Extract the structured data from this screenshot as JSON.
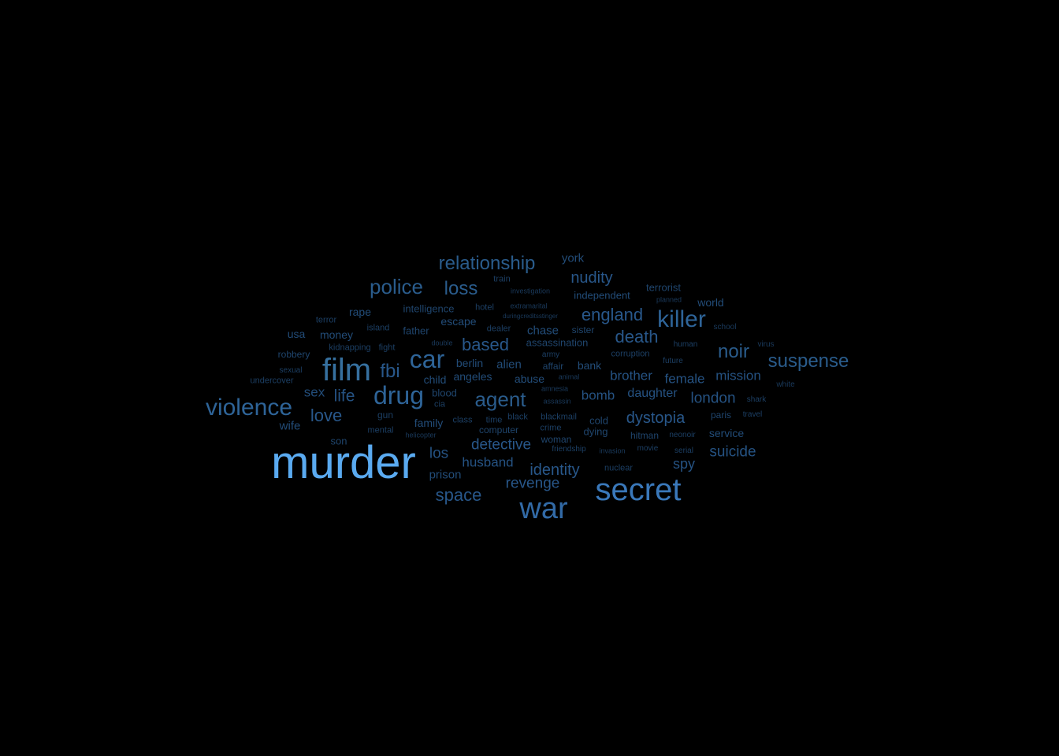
{
  "words": [
    {
      "text": "murder",
      "color": "#5aaaf0"
    },
    {
      "text": "secret",
      "color": "#3a78ba"
    },
    {
      "text": "war",
      "color": "#326aa6"
    },
    {
      "text": "film",
      "color": "#36709f"
    },
    {
      "text": "drug",
      "color": "#2e6498"
    },
    {
      "text": "car",
      "color": "#2e6498"
    },
    {
      "text": "violence",
      "color": "#2e6498"
    },
    {
      "text": "killer",
      "color": "#2e6498"
    },
    {
      "text": "police",
      "color": "#2a5c8c"
    },
    {
      "text": "agent",
      "color": "#2a5c8c"
    },
    {
      "text": "relationship",
      "color": "#2a5c8c"
    },
    {
      "text": "suspense",
      "color": "#2a5c8c"
    },
    {
      "text": "loss",
      "color": "#2a5c8c"
    },
    {
      "text": "noir",
      "color": "#2a5c8c"
    },
    {
      "text": "fbi",
      "color": "#28578a"
    },
    {
      "text": "england",
      "color": "#28578a"
    },
    {
      "text": "death",
      "color": "#28578a"
    },
    {
      "text": "based",
      "color": "#28578a"
    },
    {
      "text": "space",
      "color": "#28578a"
    },
    {
      "text": "love",
      "color": "#28578a"
    },
    {
      "text": "nudity",
      "color": "#28578a"
    },
    {
      "text": "identity",
      "color": "#28578a"
    },
    {
      "text": "dystopia",
      "color": "#28578a"
    },
    {
      "text": "revenge",
      "color": "#28578a"
    },
    {
      "text": "detective",
      "color": "#28578a"
    },
    {
      "text": "life",
      "color": "#255282"
    },
    {
      "text": "london",
      "color": "#255282"
    },
    {
      "text": "mission",
      "color": "#255282"
    },
    {
      "text": "suicide",
      "color": "#255282"
    },
    {
      "text": "husband",
      "color": "#255282"
    },
    {
      "text": "los",
      "color": "#255282"
    },
    {
      "text": "brother",
      "color": "#255282"
    },
    {
      "text": "female",
      "color": "#255282"
    },
    {
      "text": "bomb",
      "color": "#255282"
    },
    {
      "text": "daughter",
      "color": "#255282"
    },
    {
      "text": "spy",
      "color": "#255282"
    },
    {
      "text": "prison",
      "color": "#224c78"
    },
    {
      "text": "sex",
      "color": "#224c78"
    },
    {
      "text": "york",
      "color": "#224c78"
    },
    {
      "text": "alien",
      "color": "#224c78"
    },
    {
      "text": "chase",
      "color": "#224c78"
    },
    {
      "text": "angeles",
      "color": "#224c78"
    },
    {
      "text": "escape",
      "color": "#224c78"
    },
    {
      "text": "abuse",
      "color": "#224c78"
    },
    {
      "text": "berlin",
      "color": "#224c78"
    },
    {
      "text": "bank",
      "color": "#224c78"
    },
    {
      "text": "service",
      "color": "#224c78"
    },
    {
      "text": "world",
      "color": "#224c78"
    },
    {
      "text": "independent",
      "color": "#224c78"
    },
    {
      "text": "money",
      "color": "#224c78"
    },
    {
      "text": "rape",
      "color": "#224c78"
    },
    {
      "text": "usa",
      "color": "#224c78"
    },
    {
      "text": "wife",
      "color": "#224c78"
    },
    {
      "text": "family",
      "color": "#224c78"
    },
    {
      "text": "child",
      "color": "#224c78"
    },
    {
      "text": "father",
      "color": "#1f456d"
    },
    {
      "text": "intelligence",
      "color": "#1f456d"
    },
    {
      "text": "assassination",
      "color": "#1f456d"
    },
    {
      "text": "computer",
      "color": "#1f456d"
    },
    {
      "text": "blood",
      "color": "#1f456d"
    },
    {
      "text": "cold",
      "color": "#1f456d"
    },
    {
      "text": "dying",
      "color": "#1f456d"
    },
    {
      "text": "terrorist",
      "color": "#1f456d"
    },
    {
      "text": "son",
      "color": "#1f456d"
    },
    {
      "text": "robbery",
      "color": "#1f456d"
    },
    {
      "text": "hitman",
      "color": "#1f456d"
    },
    {
      "text": "paris",
      "color": "#1f456d"
    },
    {
      "text": "affair",
      "color": "#1f456d"
    },
    {
      "text": "sister",
      "color": "#1f456d"
    },
    {
      "text": "woman",
      "color": "#1f456d"
    },
    {
      "text": "nuclear",
      "color": "#1c3f64"
    },
    {
      "text": "crime",
      "color": "#1c3f64"
    },
    {
      "text": "class",
      "color": "#1c3f64"
    },
    {
      "text": "time",
      "color": "#1c3f64"
    },
    {
      "text": "black",
      "color": "#1c3f64"
    },
    {
      "text": "blackmail",
      "color": "#1c3f64"
    },
    {
      "text": "gun",
      "color": "#1c3f64"
    },
    {
      "text": "mental",
      "color": "#1c3f64"
    },
    {
      "text": "fight",
      "color": "#1c3f64"
    },
    {
      "text": "kidnapping",
      "color": "#1c3f64"
    },
    {
      "text": "train",
      "color": "#1c3f64"
    },
    {
      "text": "hotel",
      "color": "#1c3f64"
    },
    {
      "text": "dealer",
      "color": "#1c3f64"
    },
    {
      "text": "island",
      "color": "#1c3f64"
    },
    {
      "text": "terror",
      "color": "#1c3f64"
    },
    {
      "text": "undercover",
      "color": "#1c3f64"
    },
    {
      "text": "sexual",
      "color": "#1c3f64"
    },
    {
      "text": "cia",
      "color": "#1c3f64"
    },
    {
      "text": "army",
      "color": "#1c3f64"
    },
    {
      "text": "corruption",
      "color": "#1c3f64"
    },
    {
      "text": "human",
      "color": "#1c3f64"
    },
    {
      "text": "future",
      "color": "#1c3f64"
    },
    {
      "text": "movie",
      "color": "#1c3f64"
    },
    {
      "text": "serial",
      "color": "#1c3f64"
    },
    {
      "text": "neonoir",
      "color": "#1c3f64"
    },
    {
      "text": "travel",
      "color": "#1c3f64"
    },
    {
      "text": "shark",
      "color": "#1c3f64"
    },
    {
      "text": "friendship",
      "color": "#1c3f64"
    },
    {
      "text": "school",
      "color": "#1a3a5c"
    },
    {
      "text": "virus",
      "color": "#1a3a5c"
    },
    {
      "text": "white",
      "color": "#1a3a5c"
    },
    {
      "text": "investigation",
      "color": "#1a3a5c"
    },
    {
      "text": "extramarital",
      "color": "#1a3a5c"
    },
    {
      "text": "duringcreditsstinger",
      "color": "#1a3a5c"
    },
    {
      "text": "planned",
      "color": "#1a3a5c"
    },
    {
      "text": "double",
      "color": "#1a3a5c"
    },
    {
      "text": "amnesia",
      "color": "#1a3a5c"
    },
    {
      "text": "animal",
      "color": "#1a3a5c"
    },
    {
      "text": "assassin",
      "color": "#1a3a5c"
    },
    {
      "text": "helicopter",
      "color": "#1a3a5c"
    },
    {
      "text": "invasion",
      "color": "#1a3a5c"
    }
  ]
}
